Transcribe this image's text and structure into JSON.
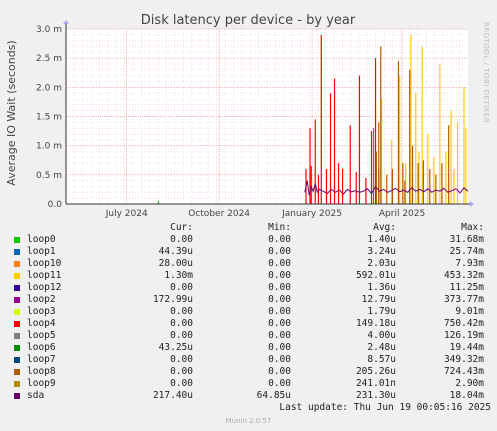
{
  "chart_data": {
    "type": "line",
    "title": "Disk latency per device - by year",
    "ylabel": "Average IO Wait (seconds)",
    "side_label": "RRDTOOL / TOBI OETIKER",
    "y_ticks": [
      "0.0",
      "0.5 m",
      "1.0 m",
      "1.5 m",
      "2.0 m",
      "2.5 m",
      "3.0 m"
    ],
    "ylim": [
      0,
      3.0
    ],
    "x_ticks": [
      "July 2024",
      "October 2024",
      "January 2025",
      "April 2025"
    ],
    "grid": true,
    "columns": [
      "Cur:",
      "Min:",
      "Avg:",
      "Max:"
    ],
    "series": [
      {
        "name": "loop0",
        "color": "#00cc00",
        "cur": "0.00",
        "min": "0.00",
        "avg": "1.40u",
        "max": "31.68m",
        "spikes": [
          [
            0.23,
            0.05
          ]
        ]
      },
      {
        "name": "loop1",
        "color": "#0066b3",
        "cur": "44.39u",
        "min": "0.00",
        "avg": "3.24u",
        "max": "25.74m",
        "spikes": []
      },
      {
        "name": "loop10",
        "color": "#ff8000",
        "cur": "28.00u",
        "min": "0.00",
        "avg": "2.03u",
        "max": "7.93m",
        "spikes": []
      },
      {
        "name": "loop11",
        "color": "#ffcc00",
        "cur": "1.30m",
        "min": "0.00",
        "avg": "592.01u",
        "max": "453.32m",
        "spikes": [
          [
            0.785,
            1.8
          ],
          [
            0.81,
            1.1
          ],
          [
            0.83,
            2.2
          ],
          [
            0.845,
            0.7
          ],
          [
            0.858,
            2.9
          ],
          [
            0.87,
            1.9
          ],
          [
            0.878,
            0.9
          ],
          [
            0.886,
            2.7
          ],
          [
            0.9,
            1.2
          ],
          [
            0.915,
            0.8
          ],
          [
            0.93,
            2.4
          ],
          [
            0.945,
            0.9
          ],
          [
            0.958,
            1.6
          ],
          [
            0.965,
            0.6
          ],
          [
            0.974,
            1.4
          ],
          [
            0.99,
            2.0
          ],
          [
            0.995,
            1.3
          ]
        ]
      },
      {
        "name": "loop12",
        "color": "#330099",
        "cur": "0.00",
        "min": "0.00",
        "avg": "1.36u",
        "max": "11.25m",
        "spikes": []
      },
      {
        "name": "loop2",
        "color": "#990099",
        "cur": "172.99u",
        "min": "0.00",
        "avg": "12.79u",
        "max": "373.77m",
        "spikes": []
      },
      {
        "name": "loop3",
        "color": "#ccff00",
        "cur": "0.00",
        "min": "0.00",
        "avg": "1.79u",
        "max": "9.01m",
        "spikes": []
      },
      {
        "name": "loop4",
        "color": "#ff0000",
        "cur": "0.00",
        "min": "0.00",
        "avg": "149.18u",
        "max": "750.42m",
        "spikes": [
          [
            0.597,
            0.6
          ],
          [
            0.607,
            1.3
          ],
          [
            0.61,
            0.65
          ],
          [
            0.62,
            1.45
          ],
          [
            0.628,
            0.5
          ],
          [
            0.635,
            2.9
          ],
          [
            0.648,
            0.6
          ],
          [
            0.658,
            1.9
          ],
          [
            0.668,
            2.15
          ],
          [
            0.678,
            0.7
          ],
          [
            0.688,
            0.6
          ],
          [
            0.707,
            1.35
          ],
          [
            0.722,
            0.55
          ],
          [
            0.73,
            2.2
          ],
          [
            0.746,
            0.45
          ],
          [
            0.76,
            1.25
          ],
          [
            0.77,
            2.5
          ],
          [
            0.778,
            0.6
          ]
        ]
      },
      {
        "name": "loop5",
        "color": "#808080",
        "cur": "0.00",
        "min": "0.00",
        "avg": "4.00u",
        "max": "126.19m",
        "spikes": []
      },
      {
        "name": "loop6",
        "color": "#008f00",
        "cur": "43.25u",
        "min": "0.00",
        "avg": "2.48u",
        "max": "19.44m",
        "spikes": []
      },
      {
        "name": "loop7",
        "color": "#00487d",
        "cur": "0.00",
        "min": "0.00",
        "avg": "8.57u",
        "max": "349.32m",
        "spikes": []
      },
      {
        "name": "loop8",
        "color": "#b35a00",
        "cur": "0.00",
        "min": "0.00",
        "avg": "205.26u",
        "max": "724.43m",
        "spikes": [
          [
            0.765,
            1.3
          ],
          [
            0.772,
            0.9
          ],
          [
            0.778,
            1.4
          ],
          [
            0.783,
            2.7
          ],
          [
            0.798,
            0.5
          ],
          [
            0.812,
            0.6
          ],
          [
            0.827,
            2.45
          ],
          [
            0.838,
            0.7
          ],
          [
            0.843,
            0.4
          ],
          [
            0.855,
            2.3
          ],
          [
            0.862,
            1.0
          ],
          [
            0.876,
            0.7
          ],
          [
            0.889,
            0.75
          ],
          [
            0.905,
            0.6
          ],
          [
            0.92,
            0.5
          ],
          [
            0.935,
            0.7
          ],
          [
            0.952,
            1.35
          ]
        ]
      },
      {
        "name": "loop9",
        "color": "#b38f00",
        "cur": "0.00",
        "min": "0.00",
        "avg": "241.01n",
        "max": "2.90m",
        "spikes": []
      },
      {
        "name": "sda",
        "color": "#6b006b",
        "cur": "217.40u",
        "min": "64.85u",
        "avg": "231.30u",
        "max": "18.04m",
        "spikes": []
      }
    ],
    "sda_line": [
      [
        0.594,
        0.2
      ],
      [
        0.6,
        0.4
      ],
      [
        0.605,
        0.15
      ],
      [
        0.61,
        0.3
      ],
      [
        0.615,
        0.22
      ],
      [
        0.62,
        0.35
      ],
      [
        0.625,
        0.2
      ],
      [
        0.63,
        0.25
      ],
      [
        0.64,
        0.22
      ],
      [
        0.65,
        0.18
      ],
      [
        0.66,
        0.25
      ],
      [
        0.67,
        0.2
      ],
      [
        0.68,
        0.24
      ],
      [
        0.69,
        0.17
      ],
      [
        0.7,
        0.25
      ],
      [
        0.71,
        0.21
      ],
      [
        0.72,
        0.23
      ],
      [
        0.73,
        0.2
      ],
      [
        0.74,
        0.22
      ],
      [
        0.75,
        0.26
      ],
      [
        0.76,
        0.18
      ],
      [
        0.77,
        0.3
      ],
      [
        0.78,
        0.22
      ],
      [
        0.79,
        0.25
      ],
      [
        0.8,
        0.2
      ],
      [
        0.81,
        0.23
      ],
      [
        0.82,
        0.27
      ],
      [
        0.83,
        0.21
      ],
      [
        0.84,
        0.24
      ],
      [
        0.85,
        0.2
      ],
      [
        0.86,
        0.28
      ],
      [
        0.87,
        0.22
      ],
      [
        0.88,
        0.25
      ],
      [
        0.89,
        0.21
      ],
      [
        0.9,
        0.26
      ],
      [
        0.91,
        0.2
      ],
      [
        0.92,
        0.24
      ],
      [
        0.93,
        0.22
      ],
      [
        0.94,
        0.27
      ],
      [
        0.95,
        0.2
      ],
      [
        0.96,
        0.23
      ],
      [
        0.97,
        0.26
      ],
      [
        0.98,
        0.19
      ],
      [
        0.99,
        0.28
      ],
      [
        1.0,
        0.22
      ]
    ]
  },
  "footer": {
    "last_update": "Last update: Thu Jun 19 00:05:16 2025",
    "version": "Munin 2.0.57"
  }
}
